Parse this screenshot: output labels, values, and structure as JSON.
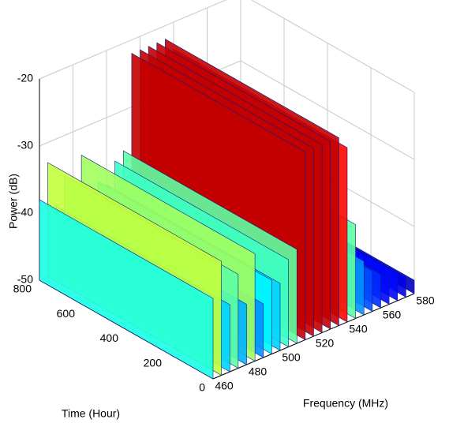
{
  "chart_data": {
    "type": "waterfall3d",
    "zlabel": "Power (dB)",
    "xlabel": "Frequency (MHz)",
    "ylabel": "Time (Hour)",
    "x": [
      460,
      465,
      470,
      475,
      480,
      485,
      490,
      495,
      500,
      505,
      510,
      515,
      520,
      525,
      530,
      535,
      540,
      545,
      550,
      555,
      560,
      565,
      570,
      575,
      580
    ],
    "values": [
      -38,
      -33,
      -40,
      -36,
      -41,
      -34,
      -42,
      -39,
      -40,
      -37,
      -36,
      -22,
      -22,
      -22,
      -22,
      -22,
      -24,
      -36,
      -42,
      -44,
      -45,
      -46,
      -46,
      -47,
      -48
    ],
    "xlim": [
      460,
      580
    ],
    "xticks": [
      460,
      480,
      500,
      520,
      540,
      560,
      580
    ],
    "ylim": [
      0,
      800
    ],
    "yticks": [
      0,
      200,
      400,
      600,
      800
    ],
    "zlim": [
      -50,
      -20
    ],
    "zticks": [
      -50,
      -40,
      -30,
      -20
    ],
    "colormap": "jet",
    "grid": true
  }
}
